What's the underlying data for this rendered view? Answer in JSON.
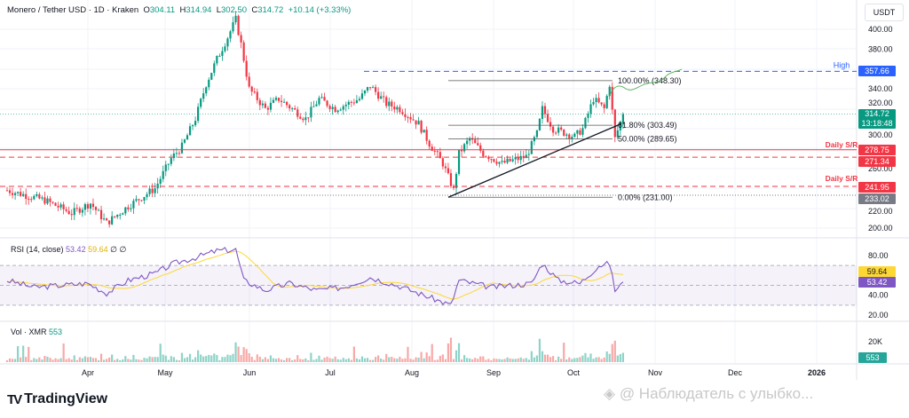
{
  "header": {
    "symbol": "Monero / Tether USD · 1D · Kraken",
    "o_label": "O",
    "open": "304.11",
    "h_label": "H",
    "high": "314.94",
    "l_label": "L",
    "low": "302.50",
    "c_label": "C",
    "close": "314.72",
    "change": "+10.14 (+3.33%)"
  },
  "currency": "USDT",
  "price_axis": {
    "ticks": [
      "400.00",
      "380.00",
      "340.00",
      "320.00",
      "300.00",
      "260.00",
      "220.00",
      "200.00"
    ]
  },
  "time_axis": {
    "ticks": [
      "Apr",
      "May",
      "Jun",
      "Jul",
      "Aug",
      "Sep",
      "Oct",
      "Nov",
      "Dec",
      "2026"
    ]
  },
  "price_tags": {
    "high": "357.66",
    "current": "314.72",
    "countdown": "13:18:48",
    "sr1": "278.75",
    "sr2": "271.34",
    "sr3": "241.95",
    "low": "233.02"
  },
  "annotations": {
    "high_label": "High",
    "daily_sr_1": "Daily S/R",
    "daily_sr_2": "Daily S/R"
  },
  "fib": {
    "l100": "100.00% (348.30)",
    "l618": "61.80% (303.49)",
    "l50": "50.00% (289.65)",
    "l0": "0.00% (231.00)"
  },
  "rsi": {
    "title": "RSI (14, close)",
    "value": "53.42",
    "ma": "59.64",
    "na1": "∅",
    "na2": "∅",
    "ticks": [
      "80.00",
      "40.00",
      "20.00"
    ]
  },
  "volume": {
    "title": "Vol · XMR",
    "value": "553",
    "ticks": [
      "20K"
    ]
  },
  "branding": {
    "name": "TradingView",
    "watermark": "@ Наблюдатель с улыбко..."
  },
  "colors": {
    "up": "#089981",
    "down": "#f23645",
    "blue": "#2962ff",
    "rsi": "#7e57c2",
    "rsi_ma": "#fdd835"
  },
  "chart_data": {
    "type": "candlestick",
    "title": "Monero / Tether USD · 1D · Kraken",
    "ylim": [
      190,
      420
    ],
    "x_start": "Mar 1",
    "close_anchors_day_price": [
      [
        0,
        238
      ],
      [
        14,
        228
      ],
      [
        24,
        215
      ],
      [
        31,
        225
      ],
      [
        37,
        205
      ],
      [
        45,
        222
      ],
      [
        55,
        240
      ],
      [
        61,
        270
      ],
      [
        65,
        282
      ],
      [
        70,
        310
      ],
      [
        74,
        345
      ],
      [
        78,
        370
      ],
      [
        82,
        392
      ],
      [
        85,
        410
      ],
      [
        87,
        385
      ],
      [
        90,
        340
      ],
      [
        96,
        320
      ],
      [
        101,
        330
      ],
      [
        106,
        320
      ],
      [
        111,
        310
      ],
      [
        116,
        330
      ],
      [
        122,
        320
      ],
      [
        131,
        330
      ],
      [
        135,
        343
      ],
      [
        141,
        325
      ],
      [
        146,
        320
      ],
      [
        153,
        305
      ],
      [
        157,
        285
      ],
      [
        162,
        265
      ],
      [
        166,
        238
      ],
      [
        168,
        275
      ],
      [
        172,
        290
      ],
      [
        177,
        275
      ],
      [
        184,
        265
      ],
      [
        193,
        272
      ],
      [
        197,
        295
      ],
      [
        199,
        320
      ],
      [
        203,
        300
      ],
      [
        211,
        292
      ],
      [
        214,
        300
      ],
      [
        218,
        330
      ],
      [
        222,
        320
      ],
      [
        224,
        345
      ],
      [
        226,
        290
      ],
      [
        229,
        314.72
      ]
    ],
    "hlines": {
      "high": 357.66,
      "daily_sr": 278.75,
      "sr_dashed_1": 271.34,
      "sr_dashed_2": 241.95,
      "low": 233.02,
      "current": 314.72
    },
    "fib_levels": {
      "1.0": 348.3,
      "0.618": 303.49,
      "0.5": 289.65,
      "0.0": 231.0
    },
    "rsi_anchors_day_value": [
      [
        0,
        55
      ],
      [
        10,
        48
      ],
      [
        20,
        50
      ],
      [
        30,
        52
      ],
      [
        37,
        42
      ],
      [
        45,
        55
      ],
      [
        55,
        62
      ],
      [
        62,
        72
      ],
      [
        70,
        78
      ],
      [
        78,
        85
      ],
      [
        85,
        86
      ],
      [
        88,
        55
      ],
      [
        96,
        45
      ],
      [
        105,
        52
      ],
      [
        115,
        45
      ],
      [
        125,
        48
      ],
      [
        135,
        58
      ],
      [
        145,
        50
      ],
      [
        155,
        40
      ],
      [
        165,
        30
      ],
      [
        168,
        55
      ],
      [
        180,
        48
      ],
      [
        195,
        52
      ],
      [
        199,
        72
      ],
      [
        205,
        55
      ],
      [
        213,
        52
      ],
      [
        220,
        70
      ],
      [
        224,
        72
      ],
      [
        226,
        45
      ],
      [
        229,
        53.42
      ]
    ]
  }
}
